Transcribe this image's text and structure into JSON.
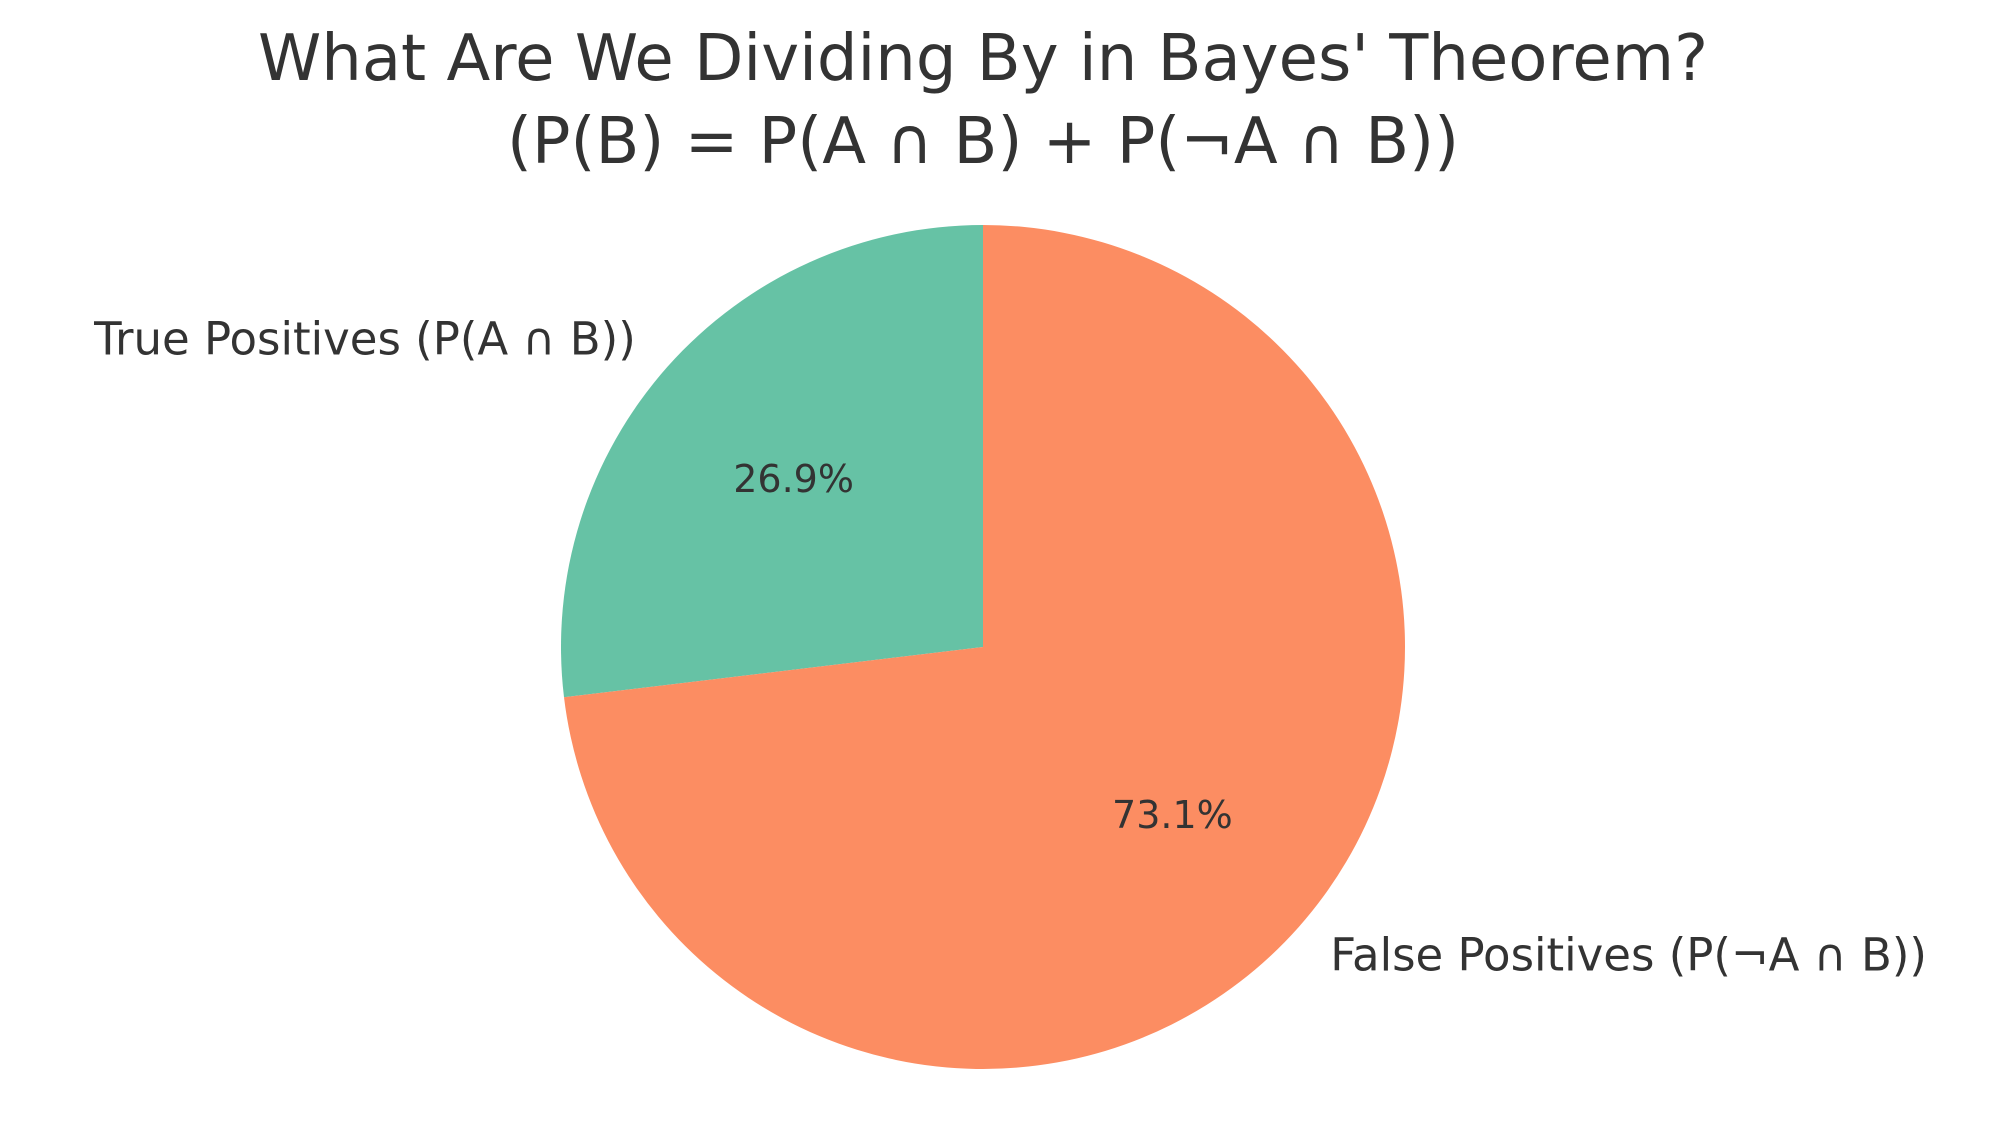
{
  "chart_data": {
    "type": "pie",
    "title_lines": [
      "What Are We Dividing By in Bayes' Theorem?",
      "(P(B) = P(A ∩ B) + P(¬A ∩ B))"
    ],
    "slices": [
      {
        "label": "True Positives (P(A ∩ B))",
        "value": 26.9,
        "pct_label": "26.9%",
        "color": "#66c2a5"
      },
      {
        "label": "False Positives (P(¬A ∩ B))",
        "value": 73.1,
        "pct_label": "73.1%",
        "color": "#fc8d62"
      }
    ],
    "start_angle_deg": 90,
    "direction": "counterclockwise",
    "legend": "none"
  }
}
